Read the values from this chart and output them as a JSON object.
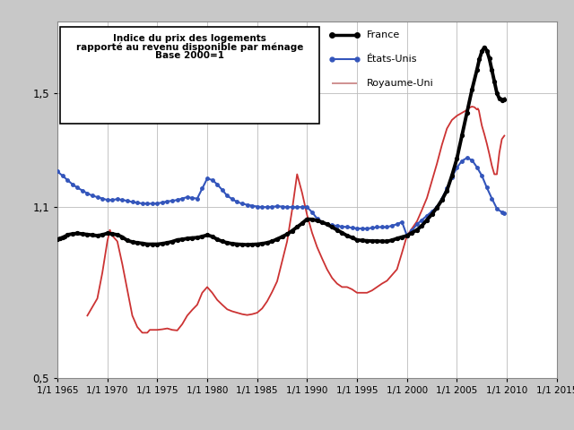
{
  "title_line1": "Indice du prix des logements",
  "title_line2": "rapporté au revenu disponible par ménage",
  "title_line3": "Base 2000=1",
  "legend_france": "France",
  "legend_usa": "États-Unis",
  "legend_uk": "Royaume-Uni",
  "ylim": [
    0.5,
    1.75
  ],
  "yticks": [
    0.5,
    1.1,
    1.5
  ],
  "ytick_labels": [
    "0,5",
    "1,1",
    "1,5"
  ],
  "xlim_start": 1965,
  "xlim_end": 2015,
  "xtick_years": [
    1965,
    1970,
    1975,
    1980,
    1985,
    1990,
    1995,
    2000,
    2005,
    2010,
    2015
  ],
  "outer_bg": "#c8c8c8",
  "plot_bg_color": "#ffffff",
  "france_color": "#000000",
  "usa_color": "#3355bb",
  "uk_color": "#cc3333",
  "uk_legend_color": "#cc8888",
  "france_lw": 2.8,
  "usa_lw": 1.5,
  "uk_lw": 1.3,
  "france_data": [
    [
      1965.0,
      0.987
    ],
    [
      1965.25,
      0.99
    ],
    [
      1965.5,
      0.993
    ],
    [
      1965.75,
      0.996
    ],
    [
      1966.0,
      1.003
    ],
    [
      1966.5,
      1.006
    ],
    [
      1967.0,
      1.008
    ],
    [
      1967.5,
      1.006
    ],
    [
      1968.0,
      1.004
    ],
    [
      1968.5,
      1.002
    ],
    [
      1969.0,
      1.0
    ],
    [
      1969.5,
      1.003
    ],
    [
      1970.0,
      1.008
    ],
    [
      1970.5,
      1.006
    ],
    [
      1971.0,
      1.003
    ],
    [
      1971.5,
      0.995
    ],
    [
      1972.0,
      0.983
    ],
    [
      1972.5,
      0.978
    ],
    [
      1973.0,
      0.975
    ],
    [
      1973.5,
      0.973
    ],
    [
      1974.0,
      0.97
    ],
    [
      1974.5,
      0.97
    ],
    [
      1975.0,
      0.97
    ],
    [
      1975.5,
      0.972
    ],
    [
      1976.0,
      0.975
    ],
    [
      1976.5,
      0.979
    ],
    [
      1977.0,
      0.985
    ],
    [
      1977.5,
      0.987
    ],
    [
      1978.0,
      0.99
    ],
    [
      1978.5,
      0.992
    ],
    [
      1979.0,
      0.993
    ],
    [
      1979.5,
      0.997
    ],
    [
      1980.0,
      1.002
    ],
    [
      1980.5,
      0.997
    ],
    [
      1981.0,
      0.987
    ],
    [
      1981.5,
      0.98
    ],
    [
      1982.0,
      0.975
    ],
    [
      1982.5,
      0.972
    ],
    [
      1983.0,
      0.97
    ],
    [
      1983.5,
      0.969
    ],
    [
      1984.0,
      0.968
    ],
    [
      1984.5,
      0.969
    ],
    [
      1985.0,
      0.97
    ],
    [
      1985.5,
      0.972
    ],
    [
      1986.0,
      0.975
    ],
    [
      1986.5,
      0.98
    ],
    [
      1987.0,
      0.988
    ],
    [
      1987.5,
      0.996
    ],
    [
      1988.0,
      1.005
    ],
    [
      1988.5,
      1.017
    ],
    [
      1989.0,
      1.03
    ],
    [
      1989.5,
      1.043
    ],
    [
      1990.0,
      1.058
    ],
    [
      1990.5,
      1.057
    ],
    [
      1991.0,
      1.053
    ],
    [
      1991.5,
      1.047
    ],
    [
      1992.0,
      1.04
    ],
    [
      1992.5,
      1.03
    ],
    [
      1993.0,
      1.02
    ],
    [
      1993.5,
      1.01
    ],
    [
      1994.0,
      1.0
    ],
    [
      1994.5,
      0.993
    ],
    [
      1995.0,
      0.985
    ],
    [
      1995.5,
      0.983
    ],
    [
      1996.0,
      0.982
    ],
    [
      1996.5,
      0.981
    ],
    [
      1997.0,
      0.981
    ],
    [
      1997.5,
      0.98
    ],
    [
      1998.0,
      0.98
    ],
    [
      1998.5,
      0.984
    ],
    [
      1999.0,
      0.99
    ],
    [
      1999.5,
      0.995
    ],
    [
      2000.0,
      1.0
    ],
    [
      2000.5,
      1.01
    ],
    [
      2001.0,
      1.02
    ],
    [
      2001.5,
      1.035
    ],
    [
      2002.0,
      1.055
    ],
    [
      2002.5,
      1.075
    ],
    [
      2003.0,
      1.098
    ],
    [
      2003.5,
      1.125
    ],
    [
      2004.0,
      1.158
    ],
    [
      2004.5,
      1.21
    ],
    [
      2005.0,
      1.27
    ],
    [
      2005.5,
      1.35
    ],
    [
      2006.0,
      1.43
    ],
    [
      2006.5,
      1.51
    ],
    [
      2007.0,
      1.58
    ],
    [
      2007.25,
      1.618
    ],
    [
      2007.5,
      1.645
    ],
    [
      2007.75,
      1.66
    ],
    [
      2008.0,
      1.648
    ],
    [
      2008.25,
      1.62
    ],
    [
      2008.5,
      1.58
    ],
    [
      2008.75,
      1.54
    ],
    [
      2009.0,
      1.5
    ],
    [
      2009.25,
      1.48
    ],
    [
      2009.5,
      1.475
    ],
    [
      2009.75,
      1.478
    ]
  ],
  "usa_data": [
    [
      1965.0,
      1.225
    ],
    [
      1965.5,
      1.21
    ],
    [
      1966.0,
      1.195
    ],
    [
      1966.5,
      1.18
    ],
    [
      1967.0,
      1.168
    ],
    [
      1967.5,
      1.158
    ],
    [
      1968.0,
      1.148
    ],
    [
      1968.5,
      1.14
    ],
    [
      1969.0,
      1.135
    ],
    [
      1969.5,
      1.13
    ],
    [
      1970.0,
      1.125
    ],
    [
      1970.5,
      1.125
    ],
    [
      1971.0,
      1.128
    ],
    [
      1971.5,
      1.125
    ],
    [
      1972.0,
      1.122
    ],
    [
      1972.5,
      1.118
    ],
    [
      1973.0,
      1.115
    ],
    [
      1973.5,
      1.113
    ],
    [
      1974.0,
      1.112
    ],
    [
      1974.5,
      1.112
    ],
    [
      1975.0,
      1.113
    ],
    [
      1975.5,
      1.116
    ],
    [
      1976.0,
      1.12
    ],
    [
      1976.5,
      1.122
    ],
    [
      1977.0,
      1.125
    ],
    [
      1977.5,
      1.13
    ],
    [
      1978.0,
      1.135
    ],
    [
      1978.5,
      1.132
    ],
    [
      1979.0,
      1.13
    ],
    [
      1979.5,
      1.165
    ],
    [
      1980.0,
      1.2
    ],
    [
      1980.5,
      1.195
    ],
    [
      1981.0,
      1.18
    ],
    [
      1981.5,
      1.16
    ],
    [
      1982.0,
      1.14
    ],
    [
      1982.5,
      1.128
    ],
    [
      1983.0,
      1.118
    ],
    [
      1983.5,
      1.112
    ],
    [
      1984.0,
      1.108
    ],
    [
      1984.5,
      1.105
    ],
    [
      1985.0,
      1.102
    ],
    [
      1985.5,
      1.1
    ],
    [
      1986.0,
      1.1
    ],
    [
      1986.5,
      1.101
    ],
    [
      1987.0,
      1.103
    ],
    [
      1987.5,
      1.102
    ],
    [
      1988.0,
      1.1
    ],
    [
      1988.5,
      1.1
    ],
    [
      1989.0,
      1.1
    ],
    [
      1989.5,
      1.1
    ],
    [
      1990.0,
      1.1
    ],
    [
      1990.5,
      1.082
    ],
    [
      1991.0,
      1.06
    ],
    [
      1991.5,
      1.048
    ],
    [
      1992.0,
      1.04
    ],
    [
      1992.5,
      1.037
    ],
    [
      1993.0,
      1.034
    ],
    [
      1993.5,
      1.032
    ],
    [
      1994.0,
      1.03
    ],
    [
      1994.5,
      1.028
    ],
    [
      1995.0,
      1.025
    ],
    [
      1995.5,
      1.025
    ],
    [
      1996.0,
      1.025
    ],
    [
      1996.5,
      1.027
    ],
    [
      1997.0,
      1.03
    ],
    [
      1997.5,
      1.03
    ],
    [
      1998.0,
      1.03
    ],
    [
      1998.5,
      1.035
    ],
    [
      1999.0,
      1.04
    ],
    [
      1999.5,
      1.048
    ],
    [
      2000.0,
      1.0
    ],
    [
      2000.5,
      1.018
    ],
    [
      2001.0,
      1.04
    ],
    [
      2001.5,
      1.055
    ],
    [
      2002.0,
      1.07
    ],
    [
      2002.5,
      1.085
    ],
    [
      2003.0,
      1.1
    ],
    [
      2003.5,
      1.13
    ],
    [
      2004.0,
      1.165
    ],
    [
      2004.5,
      1.205
    ],
    [
      2005.0,
      1.238
    ],
    [
      2005.5,
      1.262
    ],
    [
      2006.0,
      1.272
    ],
    [
      2006.5,
      1.265
    ],
    [
      2007.0,
      1.24
    ],
    [
      2007.5,
      1.21
    ],
    [
      2008.0,
      1.168
    ],
    [
      2008.5,
      1.13
    ],
    [
      2009.0,
      1.095
    ],
    [
      2009.5,
      1.082
    ],
    [
      2009.75,
      1.08
    ]
  ],
  "uk_data": [
    [
      1968.0,
      0.72
    ],
    [
      1968.5,
      0.75
    ],
    [
      1969.0,
      0.78
    ],
    [
      1969.5,
      0.87
    ],
    [
      1970.0,
      0.98
    ],
    [
      1970.25,
      1.02
    ],
    [
      1970.5,
      1.0
    ],
    [
      1971.0,
      0.98
    ],
    [
      1971.5,
      0.9
    ],
    [
      1972.0,
      0.81
    ],
    [
      1972.5,
      0.72
    ],
    [
      1973.0,
      0.68
    ],
    [
      1973.5,
      0.66
    ],
    [
      1974.0,
      0.66
    ],
    [
      1974.25,
      0.67
    ],
    [
      1975.0,
      0.67
    ],
    [
      1975.5,
      0.672
    ],
    [
      1976.0,
      0.675
    ],
    [
      1976.5,
      0.67
    ],
    [
      1977.0,
      0.668
    ],
    [
      1977.5,
      0.69
    ],
    [
      1978.0,
      0.72
    ],
    [
      1978.5,
      0.74
    ],
    [
      1979.0,
      0.758
    ],
    [
      1979.5,
      0.8
    ],
    [
      1980.0,
      0.82
    ],
    [
      1980.5,
      0.8
    ],
    [
      1981.0,
      0.775
    ],
    [
      1981.5,
      0.758
    ],
    [
      1982.0,
      0.742
    ],
    [
      1982.5,
      0.735
    ],
    [
      1983.0,
      0.73
    ],
    [
      1983.5,
      0.725
    ],
    [
      1984.0,
      0.722
    ],
    [
      1984.5,
      0.725
    ],
    [
      1985.0,
      0.73
    ],
    [
      1985.5,
      0.745
    ],
    [
      1986.0,
      0.77
    ],
    [
      1986.5,
      0.803
    ],
    [
      1987.0,
      0.84
    ],
    [
      1987.5,
      0.91
    ],
    [
      1988.0,
      0.98
    ],
    [
      1988.5,
      1.09
    ],
    [
      1989.0,
      1.215
    ],
    [
      1989.5,
      1.15
    ],
    [
      1990.0,
      1.072
    ],
    [
      1990.5,
      1.01
    ],
    [
      1991.0,
      0.96
    ],
    [
      1991.5,
      0.92
    ],
    [
      1992.0,
      0.882
    ],
    [
      1992.5,
      0.852
    ],
    [
      1993.0,
      0.832
    ],
    [
      1993.5,
      0.82
    ],
    [
      1994.0,
      0.82
    ],
    [
      1994.5,
      0.812
    ],
    [
      1995.0,
      0.8
    ],
    [
      1995.5,
      0.8
    ],
    [
      1996.0,
      0.8
    ],
    [
      1996.5,
      0.808
    ],
    [
      1997.0,
      0.82
    ],
    [
      1997.5,
      0.832
    ],
    [
      1998.0,
      0.842
    ],
    [
      1998.5,
      0.862
    ],
    [
      1999.0,
      0.882
    ],
    [
      1999.5,
      0.94
    ],
    [
      2000.0,
      1.0
    ],
    [
      2000.5,
      1.025
    ],
    [
      2001.0,
      1.05
    ],
    [
      2001.5,
      1.09
    ],
    [
      2002.0,
      1.132
    ],
    [
      2002.5,
      1.192
    ],
    [
      2003.0,
      1.252
    ],
    [
      2003.5,
      1.318
    ],
    [
      2004.0,
      1.375
    ],
    [
      2004.5,
      1.405
    ],
    [
      2005.0,
      1.42
    ],
    [
      2005.5,
      1.43
    ],
    [
      2006.0,
      1.44
    ],
    [
      2006.25,
      1.448
    ],
    [
      2006.5,
      1.452
    ],
    [
      2006.75,
      1.45
    ],
    [
      2007.0,
      1.442
    ],
    [
      2007.1,
      1.445
    ],
    [
      2007.2,
      1.438
    ],
    [
      2007.3,
      1.42
    ],
    [
      2007.4,
      1.402
    ],
    [
      2007.5,
      1.385
    ],
    [
      2007.75,
      1.355
    ],
    [
      2008.0,
      1.322
    ],
    [
      2008.25,
      1.285
    ],
    [
      2008.5,
      1.245
    ],
    [
      2008.75,
      1.215
    ],
    [
      2009.0,
      1.215
    ],
    [
      2009.25,
      1.29
    ],
    [
      2009.5,
      1.338
    ],
    [
      2009.75,
      1.35
    ]
  ]
}
